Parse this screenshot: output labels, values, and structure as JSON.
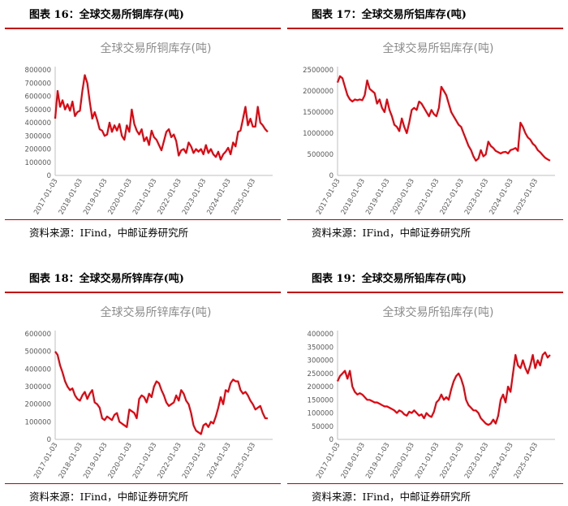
{
  "figures": [
    {
      "fig_title": "图表 16：全球交易所铜库存(吨)",
      "source": "资料来源：IFind，中邮证券研究所"
    },
    {
      "fig_title": "图表 17：全球交易所铝库存(吨)",
      "source": "资料来源：IFind，中邮证券研究所"
    },
    {
      "fig_title": "图表 18：全球交易所锌库存(吨)",
      "source": "资料来源：IFind，中邮证券研究所"
    },
    {
      "fig_title": "图表 19：全球交易所铅库存(吨)",
      "source": "资料来源：IFind，中邮证券研究所"
    }
  ],
  "colors": {
    "line": "#e8000b",
    "rule": "#c00000",
    "axis": "#bfbfbf",
    "title_gray": "#8c8c8c"
  },
  "chart_data": [
    {
      "type": "line",
      "title": "全球交易所铜库存(吨)",
      "ylim": [
        0,
        800000
      ],
      "yticks": [
        "0",
        "100000",
        "200000",
        "300000",
        "400000",
        "500000",
        "600000",
        "700000",
        "800000"
      ],
      "xlim": [
        2017.0,
        2025.8
      ],
      "xticks": [
        "2017-01-03",
        "2018-01-03",
        "2019-01-03",
        "2020-01-03",
        "2021-01-03",
        "2022-01-03",
        "2023-01-03",
        "2024-01-03",
        "2025-01-03"
      ],
      "series": [
        {
          "x": [
            2017.0,
            2017.1,
            2017.2,
            2017.3,
            2017.4,
            2017.5,
            2017.6,
            2017.7,
            2017.8,
            2017.9,
            2018.0,
            2018.1,
            2018.2,
            2018.3,
            2018.4,
            2018.5,
            2018.6,
            2018.7,
            2018.8,
            2018.9,
            2019.0,
            2019.1,
            2019.2,
            2019.3,
            2019.4,
            2019.5,
            2019.6,
            2019.7,
            2019.8,
            2019.9,
            2020.0,
            2020.1,
            2020.2,
            2020.3,
            2020.4,
            2020.5,
            2020.6,
            2020.7,
            2020.8,
            2020.9,
            2021.0,
            2021.1,
            2021.2,
            2021.3,
            2021.4,
            2021.5,
            2021.6,
            2021.7,
            2021.8,
            2021.9,
            2022.0,
            2022.1,
            2022.2,
            2022.3,
            2022.4,
            2022.5,
            2022.6,
            2022.7,
            2022.8,
            2022.9,
            2023.0,
            2023.1,
            2023.2,
            2023.3,
            2023.4,
            2023.5,
            2023.6,
            2023.7,
            2023.8,
            2023.9,
            2024.0,
            2024.1,
            2024.2,
            2024.3,
            2024.4,
            2024.5,
            2024.6,
            2024.7,
            2024.8,
            2024.9,
            2025.0,
            2025.1,
            2025.2,
            2025.3,
            2025.4,
            2025.5,
            2025.6
          ],
          "y": [
            430000,
            640000,
            520000,
            570000,
            500000,
            540000,
            490000,
            560000,
            450000,
            480000,
            490000,
            640000,
            760000,
            700000,
            560000,
            430000,
            480000,
            420000,
            350000,
            340000,
            300000,
            310000,
            400000,
            330000,
            380000,
            340000,
            390000,
            300000,
            270000,
            380000,
            330000,
            500000,
            390000,
            340000,
            310000,
            350000,
            260000,
            290000,
            230000,
            340000,
            290000,
            270000,
            230000,
            190000,
            260000,
            330000,
            350000,
            290000,
            310000,
            260000,
            150000,
            190000,
            200000,
            170000,
            250000,
            220000,
            170000,
            200000,
            180000,
            200000,
            160000,
            230000,
            170000,
            200000,
            160000,
            140000,
            180000,
            120000,
            160000,
            180000,
            210000,
            160000,
            250000,
            220000,
            330000,
            340000,
            430000,
            520000,
            380000,
            430000,
            370000,
            370000,
            520000,
            400000,
            380000,
            350000,
            330000
          ]
        }
      ]
    },
    {
      "type": "line",
      "title": "全球交易所铝库存(吨)",
      "ylim": [
        0,
        2500000
      ],
      "yticks": [
        "0",
        "500000",
        "1000000",
        "1500000",
        "2000000",
        "2500000"
      ],
      "xlim": [
        2017.0,
        2025.8
      ],
      "xticks": [
        "2017-01-03",
        "2018-01-03",
        "2019-01-03",
        "2020-01-03",
        "2021-01-03",
        "2022-01-03",
        "2023-01-03",
        "2024-01-03",
        "2025-01-03"
      ],
      "series": [
        {
          "x": [
            2017.0,
            2017.1,
            2017.2,
            2017.3,
            2017.4,
            2017.5,
            2017.6,
            2017.7,
            2017.8,
            2017.9,
            2018.0,
            2018.1,
            2018.2,
            2018.3,
            2018.4,
            2018.5,
            2018.6,
            2018.7,
            2018.8,
            2018.9,
            2019.0,
            2019.1,
            2019.2,
            2019.3,
            2019.4,
            2019.5,
            2019.6,
            2019.7,
            2019.8,
            2019.9,
            2020.0,
            2020.1,
            2020.2,
            2020.3,
            2020.4,
            2020.5,
            2020.6,
            2020.7,
            2020.8,
            2020.9,
            2021.0,
            2021.1,
            2021.2,
            2021.3,
            2021.4,
            2021.5,
            2021.6,
            2021.7,
            2021.8,
            2021.9,
            2022.0,
            2022.1,
            2022.2,
            2022.3,
            2022.4,
            2022.5,
            2022.6,
            2022.7,
            2022.8,
            2022.9,
            2023.0,
            2023.1,
            2023.2,
            2023.3,
            2023.4,
            2023.5,
            2023.6,
            2023.7,
            2023.8,
            2023.9,
            2024.0,
            2024.1,
            2024.2,
            2024.3,
            2024.4,
            2024.5,
            2024.6,
            2024.7,
            2024.8,
            2024.9,
            2025.0,
            2025.1,
            2025.2,
            2025.3,
            2025.4,
            2025.5,
            2025.6
          ],
          "y": [
            2200000,
            2350000,
            2300000,
            2100000,
            1900000,
            1800000,
            1750000,
            1800000,
            1780000,
            1800000,
            1780000,
            1900000,
            2250000,
            2050000,
            2000000,
            1950000,
            1700000,
            1800000,
            1600000,
            1500000,
            1800000,
            1550000,
            1400000,
            1200000,
            1150000,
            1050000,
            1350000,
            1150000,
            1000000,
            1250000,
            1550000,
            1600000,
            1550000,
            1750000,
            1700000,
            1600000,
            1500000,
            1400000,
            1550000,
            1450000,
            1400000,
            1600000,
            2100000,
            2000000,
            1900000,
            1700000,
            1500000,
            1400000,
            1300000,
            1200000,
            1150000,
            1000000,
            850000,
            700000,
            600000,
            450000,
            350000,
            400000,
            600000,
            450000,
            500000,
            800000,
            700000,
            650000,
            580000,
            550000,
            520000,
            550000,
            560000,
            520000,
            600000,
            620000,
            650000,
            580000,
            1250000,
            1150000,
            1000000,
            900000,
            850000,
            750000,
            700000,
            600000,
            550000,
            480000,
            420000,
            380000,
            350000
          ]
        }
      ]
    },
    {
      "type": "line",
      "title": "全球交易所锌库存(吨)",
      "ylim": [
        0,
        600000
      ],
      "yticks": [
        "0",
        "100000",
        "200000",
        "300000",
        "400000",
        "500000",
        "600000"
      ],
      "xlim": [
        2017.0,
        2025.8
      ],
      "xticks": [
        "2017-01-03",
        "2018-01-03",
        "2019-01-03",
        "2020-01-03",
        "2021-01-03",
        "2022-01-03",
        "2023-01-03",
        "2024-01-03",
        "2025-01-03"
      ],
      "series": [
        {
          "x": [
            2017.0,
            2017.1,
            2017.2,
            2017.3,
            2017.4,
            2017.5,
            2017.6,
            2017.7,
            2017.8,
            2017.9,
            2018.0,
            2018.1,
            2018.2,
            2018.3,
            2018.4,
            2018.5,
            2018.6,
            2018.7,
            2018.8,
            2018.9,
            2019.0,
            2019.1,
            2019.2,
            2019.3,
            2019.4,
            2019.5,
            2019.6,
            2019.7,
            2019.8,
            2019.9,
            2020.0,
            2020.1,
            2020.2,
            2020.3,
            2020.4,
            2020.5,
            2020.6,
            2020.7,
            2020.8,
            2020.9,
            2021.0,
            2021.1,
            2021.2,
            2021.3,
            2021.4,
            2021.5,
            2021.6,
            2021.7,
            2021.8,
            2021.9,
            2022.0,
            2022.1,
            2022.2,
            2022.3,
            2022.4,
            2022.5,
            2022.6,
            2022.7,
            2022.8,
            2022.9,
            2023.0,
            2023.1,
            2023.2,
            2023.3,
            2023.4,
            2023.5,
            2023.6,
            2023.7,
            2023.8,
            2023.9,
            2024.0,
            2024.1,
            2024.2,
            2024.3,
            2024.4,
            2024.5,
            2024.6,
            2024.7,
            2024.8,
            2024.9,
            2025.0,
            2025.1,
            2025.2,
            2025.3,
            2025.4,
            2025.5,
            2025.6
          ],
          "y": [
            500000,
            480000,
            420000,
            380000,
            330000,
            300000,
            280000,
            290000,
            250000,
            230000,
            220000,
            250000,
            270000,
            230000,
            260000,
            280000,
            210000,
            200000,
            180000,
            120000,
            110000,
            130000,
            120000,
            110000,
            140000,
            150000,
            100000,
            90000,
            80000,
            70000,
            170000,
            160000,
            150000,
            120000,
            230000,
            250000,
            240000,
            210000,
            260000,
            240000,
            300000,
            330000,
            320000,
            280000,
            250000,
            210000,
            190000,
            200000,
            210000,
            250000,
            220000,
            280000,
            260000,
            220000,
            200000,
            150000,
            80000,
            50000,
            40000,
            30000,
            80000,
            90000,
            70000,
            100000,
            90000,
            130000,
            180000,
            240000,
            200000,
            280000,
            270000,
            320000,
            340000,
            330000,
            330000,
            280000,
            260000,
            270000,
            250000,
            220000,
            200000,
            170000,
            180000,
            190000,
            150000,
            120000,
            120000
          ]
        }
      ]
    },
    {
      "type": "line",
      "title": "全球交易所铅库存(吨)",
      "ylim": [
        0,
        400000
      ],
      "yticks": [
        "0",
        "50000",
        "100000",
        "150000",
        "200000",
        "250000",
        "300000",
        "350000",
        "400000"
      ],
      "xlim": [
        2017.0,
        2025.8
      ],
      "xticks": [
        "2017-01-03",
        "2018-01-03",
        "2019-01-03",
        "2020-01-03",
        "2021-01-03",
        "2022-01-03",
        "2023-01-03",
        "2024-01-03",
        "2025-01-03"
      ],
      "series": [
        {
          "x": [
            2017.0,
            2017.1,
            2017.2,
            2017.3,
            2017.4,
            2017.5,
            2017.6,
            2017.7,
            2017.8,
            2017.9,
            2018.0,
            2018.1,
            2018.2,
            2018.3,
            2018.4,
            2018.5,
            2018.6,
            2018.7,
            2018.8,
            2018.9,
            2019.0,
            2019.1,
            2019.2,
            2019.3,
            2019.4,
            2019.5,
            2019.6,
            2019.7,
            2019.8,
            2019.9,
            2020.0,
            2020.1,
            2020.2,
            2020.3,
            2020.4,
            2020.5,
            2020.6,
            2020.7,
            2020.8,
            2020.9,
            2021.0,
            2021.1,
            2021.2,
            2021.3,
            2021.4,
            2021.5,
            2021.6,
            2021.7,
            2021.8,
            2021.9,
            2022.0,
            2022.1,
            2022.2,
            2022.3,
            2022.4,
            2022.5,
            2022.6,
            2022.7,
            2022.8,
            2022.9,
            2023.0,
            2023.1,
            2023.2,
            2023.3,
            2023.4,
            2023.5,
            2023.6,
            2023.7,
            2023.8,
            2023.9,
            2024.0,
            2024.1,
            2024.2,
            2024.3,
            2024.4,
            2024.5,
            2024.6,
            2024.7,
            2024.8,
            2024.9,
            2025.0,
            2025.1,
            2025.2,
            2025.3,
            2025.4,
            2025.5,
            2025.6
          ],
          "y": [
            220000,
            240000,
            250000,
            260000,
            230000,
            260000,
            200000,
            180000,
            170000,
            175000,
            170000,
            160000,
            150000,
            150000,
            145000,
            140000,
            140000,
            135000,
            130000,
            125000,
            125000,
            120000,
            115000,
            110000,
            100000,
            110000,
            105000,
            95000,
            90000,
            105000,
            100000,
            110000,
            100000,
            90000,
            95000,
            80000,
            100000,
            90000,
            85000,
            105000,
            140000,
            150000,
            170000,
            150000,
            160000,
            150000,
            190000,
            220000,
            240000,
            250000,
            230000,
            200000,
            150000,
            130000,
            120000,
            110000,
            110000,
            100000,
            80000,
            70000,
            60000,
            55000,
            60000,
            75000,
            60000,
            90000,
            150000,
            170000,
            140000,
            200000,
            180000,
            250000,
            320000,
            280000,
            270000,
            300000,
            270000,
            250000,
            280000,
            320000,
            270000,
            300000,
            280000,
            320000,
            330000,
            310000,
            320000
          ]
        }
      ]
    }
  ]
}
